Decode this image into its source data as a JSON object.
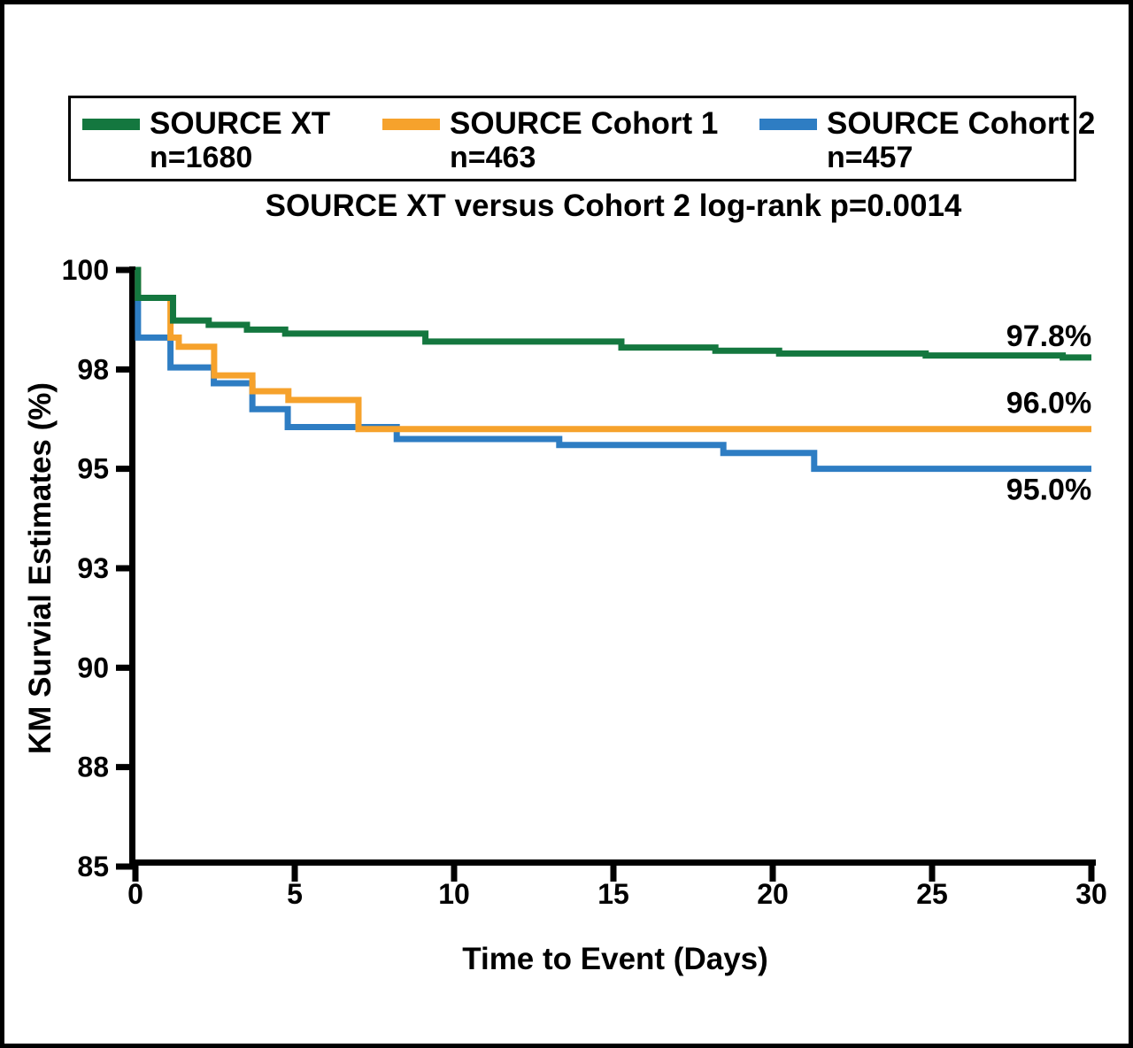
{
  "chart_data": {
    "type": "line",
    "subtype": "kaplan-meier-step",
    "title": "SOURCE XT versus Cohort 2 log-rank p=0.0014",
    "x_axis": {
      "label": "Time to Event (Days)",
      "range": [
        0,
        30
      ],
      "ticks": [
        {
          "label": "0",
          "value": 0
        },
        {
          "label": "5",
          "value": 5
        },
        {
          "label": "10",
          "value": 10
        },
        {
          "label": "15",
          "value": 15
        },
        {
          "label": "20",
          "value": 20
        },
        {
          "label": "25",
          "value": 25
        },
        {
          "label": "30",
          "value": 30
        }
      ]
    },
    "y_axis": {
      "label": "KM Survial Estimates (%)",
      "range": [
        85,
        100
      ],
      "ticks": [
        {
          "label": "100",
          "value": 100
        },
        {
          "label": "98",
          "value": 97.5
        },
        {
          "label": "95",
          "value": 95
        },
        {
          "label": "93",
          "value": 92.5
        },
        {
          "label": "90",
          "value": 90
        },
        {
          "label": "88",
          "value": 87.5
        },
        {
          "label": "85",
          "value": 85
        }
      ]
    },
    "legend_position": "top",
    "grid": false,
    "series": [
      {
        "name": "SOURCE XT",
        "n": "n=1680",
        "color": "#14773F",
        "final_label": "97.8%",
        "steps": [
          [
            0,
            100
          ],
          [
            0.08,
            99.3
          ],
          [
            1.18,
            98.73
          ],
          [
            2.3,
            98.62
          ],
          [
            3.5,
            98.5
          ],
          [
            4.7,
            98.4
          ],
          [
            9.1,
            98.2
          ],
          [
            15.25,
            98.05
          ],
          [
            18.2,
            97.97
          ],
          [
            20.2,
            97.9
          ],
          [
            24.8,
            97.85
          ],
          [
            29.1,
            97.8
          ],
          [
            30,
            97.8
          ]
        ]
      },
      {
        "name": "SOURCE Cohort 1",
        "n": "n=463",
        "color": "#F6A22C",
        "final_label": "96.0%",
        "steps": [
          [
            0,
            100
          ],
          [
            0.08,
            99.3
          ],
          [
            1.1,
            98.3
          ],
          [
            1.36,
            98.07
          ],
          [
            2.47,
            97.35
          ],
          [
            3.67,
            96.95
          ],
          [
            4.8,
            96.73
          ],
          [
            7.0,
            96.0
          ],
          [
            30,
            96.0
          ]
        ]
      },
      {
        "name": "SOURCE Cohort 2",
        "n": "n=457",
        "color": "#2E7DC3",
        "final_label": "95.0%",
        "steps": [
          [
            0,
            100
          ],
          [
            0.08,
            98.3
          ],
          [
            1.1,
            97.55
          ],
          [
            2.46,
            97.15
          ],
          [
            3.67,
            96.5
          ],
          [
            4.78,
            96.05
          ],
          [
            8.2,
            95.75
          ],
          [
            13.3,
            95.6
          ],
          [
            18.45,
            95.4
          ],
          [
            21.3,
            95.0
          ],
          [
            30,
            95.0
          ]
        ]
      }
    ],
    "axis_color": "#000000"
  }
}
